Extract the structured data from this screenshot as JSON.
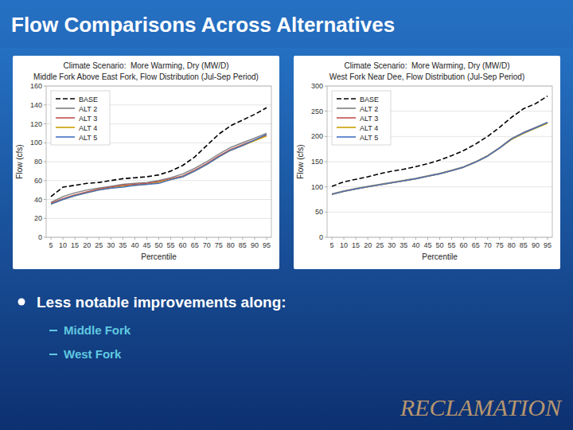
{
  "title": "Flow Comparisons Across Alternatives",
  "bullet": "Less notable improvements along:",
  "sub_items": [
    "Middle Fork",
    "West Fork"
  ],
  "footer": "RECLAMATION",
  "chart_data": [
    {
      "type": "line",
      "title": "Climate Scenario:  More Warming, Dry (MW/D)",
      "subtitle": "Middle Fork Above East Fork, Flow Distribution (Jul-Sep Period)",
      "x_label": "Percentile",
      "y_label": "Flow (cfs)",
      "x": [
        5,
        10,
        15,
        20,
        25,
        30,
        35,
        40,
        45,
        50,
        55,
        60,
        65,
        70,
        75,
        80,
        85,
        90,
        95
      ],
      "xlim": [
        3,
        97
      ],
      "xticks": [
        5,
        10,
        15,
        20,
        25,
        30,
        35,
        40,
        45,
        50,
        55,
        60,
        65,
        70,
        75,
        80,
        85,
        90,
        95
      ],
      "ylim": [
        0,
        160
      ],
      "yticks": [
        0,
        20,
        40,
        60,
        80,
        100,
        120,
        140,
        160
      ],
      "grid": "y",
      "legend": "upper left",
      "series": [
        {
          "name": "BASE",
          "color": "#000000",
          "line_style": "dashed",
          "values": [
            43,
            53,
            55,
            57,
            58,
            60,
            62,
            63,
            64,
            66,
            70,
            76,
            85,
            97,
            109,
            118,
            124,
            130,
            137
          ]
        },
        {
          "name": "ALT 2",
          "color": "#808080",
          "line_style": "solid",
          "values": [
            37,
            43,
            47,
            50,
            52,
            54,
            56,
            57,
            58,
            60,
            63,
            67,
            73,
            80,
            88,
            95,
            100,
            105,
            110
          ]
        },
        {
          "name": "ALT 3",
          "color": "#c0504d",
          "line_style": "solid",
          "values": [
            36,
            41,
            45,
            48,
            51,
            53,
            55,
            56,
            57,
            59,
            62,
            65,
            71,
            78,
            86,
            93,
            98,
            103,
            108
          ]
        },
        {
          "name": "ALT 4",
          "color": "#c8a000",
          "line_style": "solid",
          "values": [
            35,
            40,
            44,
            47,
            50,
            52,
            54,
            55,
            56,
            58,
            61,
            64,
            70,
            77,
            85,
            92,
            97,
            102,
            107
          ]
        },
        {
          "name": "ALT 5",
          "color": "#4472c4",
          "line_style": "solid",
          "values": [
            35,
            40,
            44,
            47,
            50,
            52,
            53,
            55,
            56,
            57,
            61,
            64,
            70,
            77,
            85,
            92,
            97,
            103,
            109
          ]
        }
      ]
    },
    {
      "type": "line",
      "title": "Climate Scenario:  More Warming, Dry (MW/D)",
      "subtitle": "West Fork Near Dee, Flow Distribution (Jul-Sep Period)",
      "x_label": "Percentile",
      "y_label": "Flow (cfs)",
      "x": [
        5,
        10,
        15,
        20,
        25,
        30,
        35,
        40,
        45,
        50,
        55,
        60,
        65,
        70,
        75,
        80,
        85,
        90,
        95
      ],
      "xlim": [
        3,
        97
      ],
      "xticks": [
        5,
        10,
        15,
        20,
        25,
        30,
        35,
        40,
        45,
        50,
        55,
        60,
        65,
        70,
        75,
        80,
        85,
        90,
        95
      ],
      "ylim": [
        0,
        300
      ],
      "yticks": [
        0,
        50,
        100,
        150,
        200,
        250,
        300
      ],
      "grid": "y",
      "legend": "upper left",
      "series": [
        {
          "name": "BASE",
          "color": "#000000",
          "line_style": "dashed",
          "values": [
            101,
            110,
            115,
            120,
            126,
            131,
            135,
            140,
            146,
            153,
            162,
            172,
            185,
            200,
            218,
            238,
            255,
            265,
            280
          ]
        },
        {
          "name": "ALT 2",
          "color": "#808080",
          "line_style": "solid",
          "values": [
            86,
            92,
            97,
            101,
            105,
            109,
            113,
            117,
            122,
            127,
            133,
            140,
            150,
            162,
            178,
            196,
            208,
            218,
            228
          ]
        },
        {
          "name": "ALT 3",
          "color": "#c0504d",
          "line_style": "solid",
          "values": [
            85,
            91,
            96,
            100,
            104,
            108,
            112,
            116,
            121,
            126,
            132,
            139,
            149,
            161,
            177,
            195,
            207,
            217,
            227
          ]
        },
        {
          "name": "ALT 4",
          "color": "#c8a000",
          "line_style": "solid",
          "values": [
            85,
            91,
            96,
            100,
            104,
            108,
            112,
            116,
            121,
            126,
            132,
            139,
            149,
            161,
            177,
            194,
            206,
            216,
            226
          ]
        },
        {
          "name": "ALT 5",
          "color": "#4472c4",
          "line_style": "solid",
          "values": [
            85,
            91,
            96,
            100,
            104,
            108,
            112,
            116,
            121,
            126,
            132,
            139,
            149,
            161,
            177,
            195,
            207,
            217,
            228
          ]
        }
      ]
    }
  ]
}
